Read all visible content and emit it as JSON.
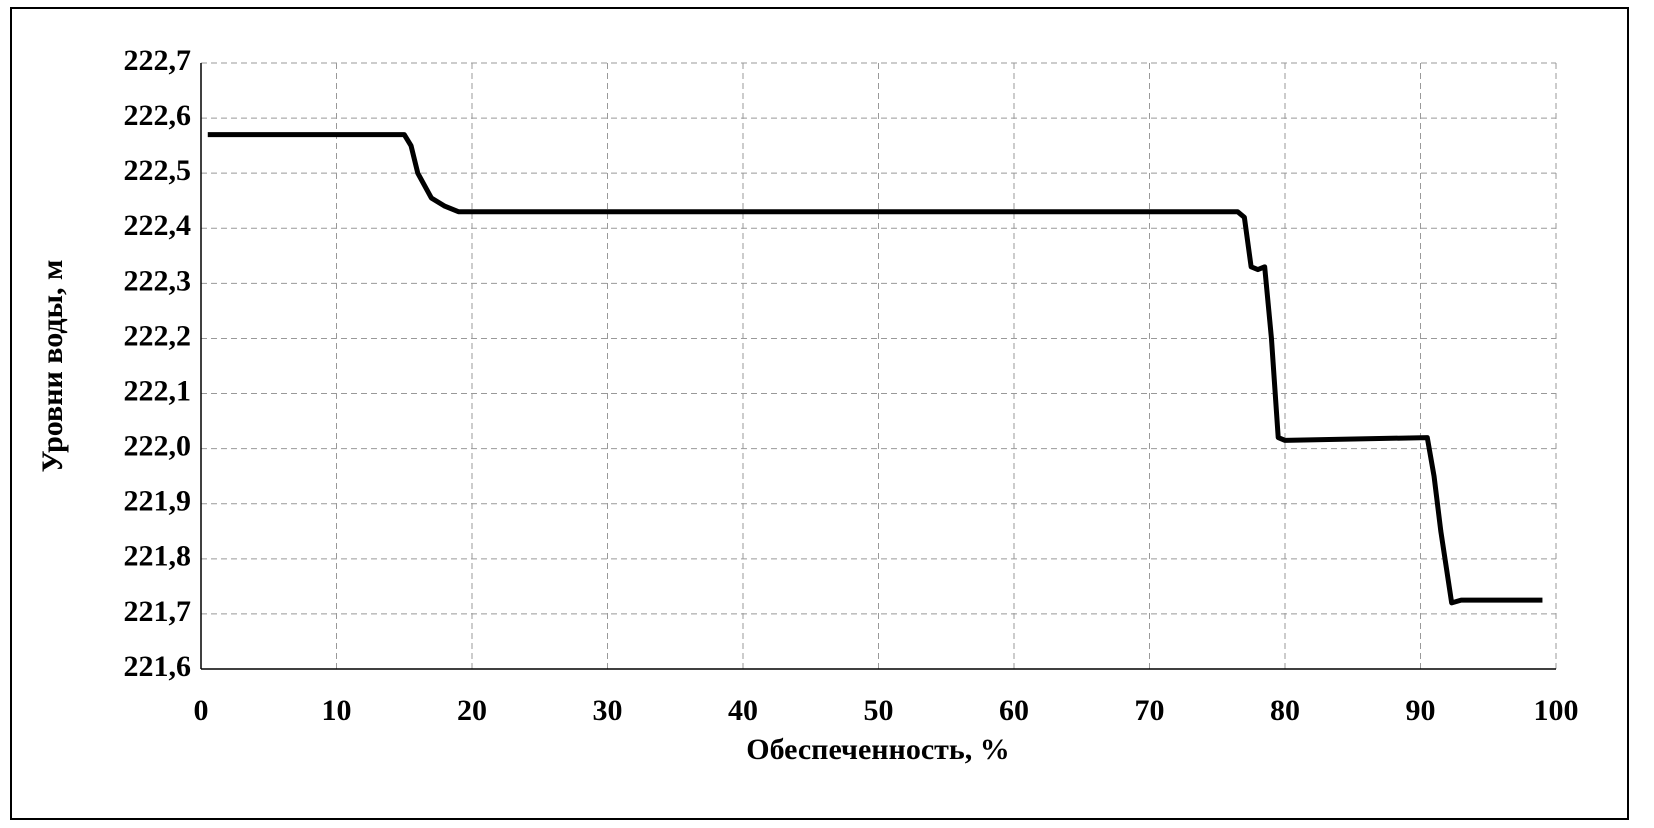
{
  "chart_data": {
    "type": "line",
    "xlabel": "Обеспеченность, %",
    "ylabel": "Уровни воды, м",
    "x": [
      0.5,
      15,
      15.5,
      16,
      17,
      18,
      19,
      76.5,
      77,
      77.5,
      78,
      78.5,
      79,
      79.5,
      80,
      90.5,
      91,
      91.5,
      92.3,
      93,
      99
    ],
    "series": [
      {
        "name": "Уровни воды",
        "color": "#000000",
        "values": [
          222.57,
          222.57,
          222.55,
          222.5,
          222.455,
          222.44,
          222.43,
          222.43,
          222.42,
          222.33,
          222.325,
          222.33,
          222.2,
          222.02,
          222.015,
          222.02,
          221.95,
          221.85,
          221.72,
          221.725,
          221.725
        ]
      }
    ],
    "xlim": [
      0,
      100
    ],
    "xticks": [
      0,
      10,
      20,
      30,
      40,
      50,
      60,
      70,
      80,
      90,
      100
    ],
    "ylim": [
      221.6,
      222.7
    ],
    "yticks": [
      {
        "value": 221.6,
        "label": "221,6"
      },
      {
        "value": 221.7,
        "label": "221,7"
      },
      {
        "value": 221.8,
        "label": "221,8"
      },
      {
        "value": 221.9,
        "label": "221,9"
      },
      {
        "value": 222.0,
        "label": "222,0"
      },
      {
        "value": 222.1,
        "label": "222,1"
      },
      {
        "value": 222.2,
        "label": "222,2"
      },
      {
        "value": 222.3,
        "label": "222,3"
      },
      {
        "value": 222.4,
        "label": "222,4"
      },
      {
        "value": 222.5,
        "label": "222,5"
      },
      {
        "value": 222.6,
        "label": "222,6"
      },
      {
        "value": 222.7,
        "label": "222,7"
      }
    ],
    "grid": true
  }
}
